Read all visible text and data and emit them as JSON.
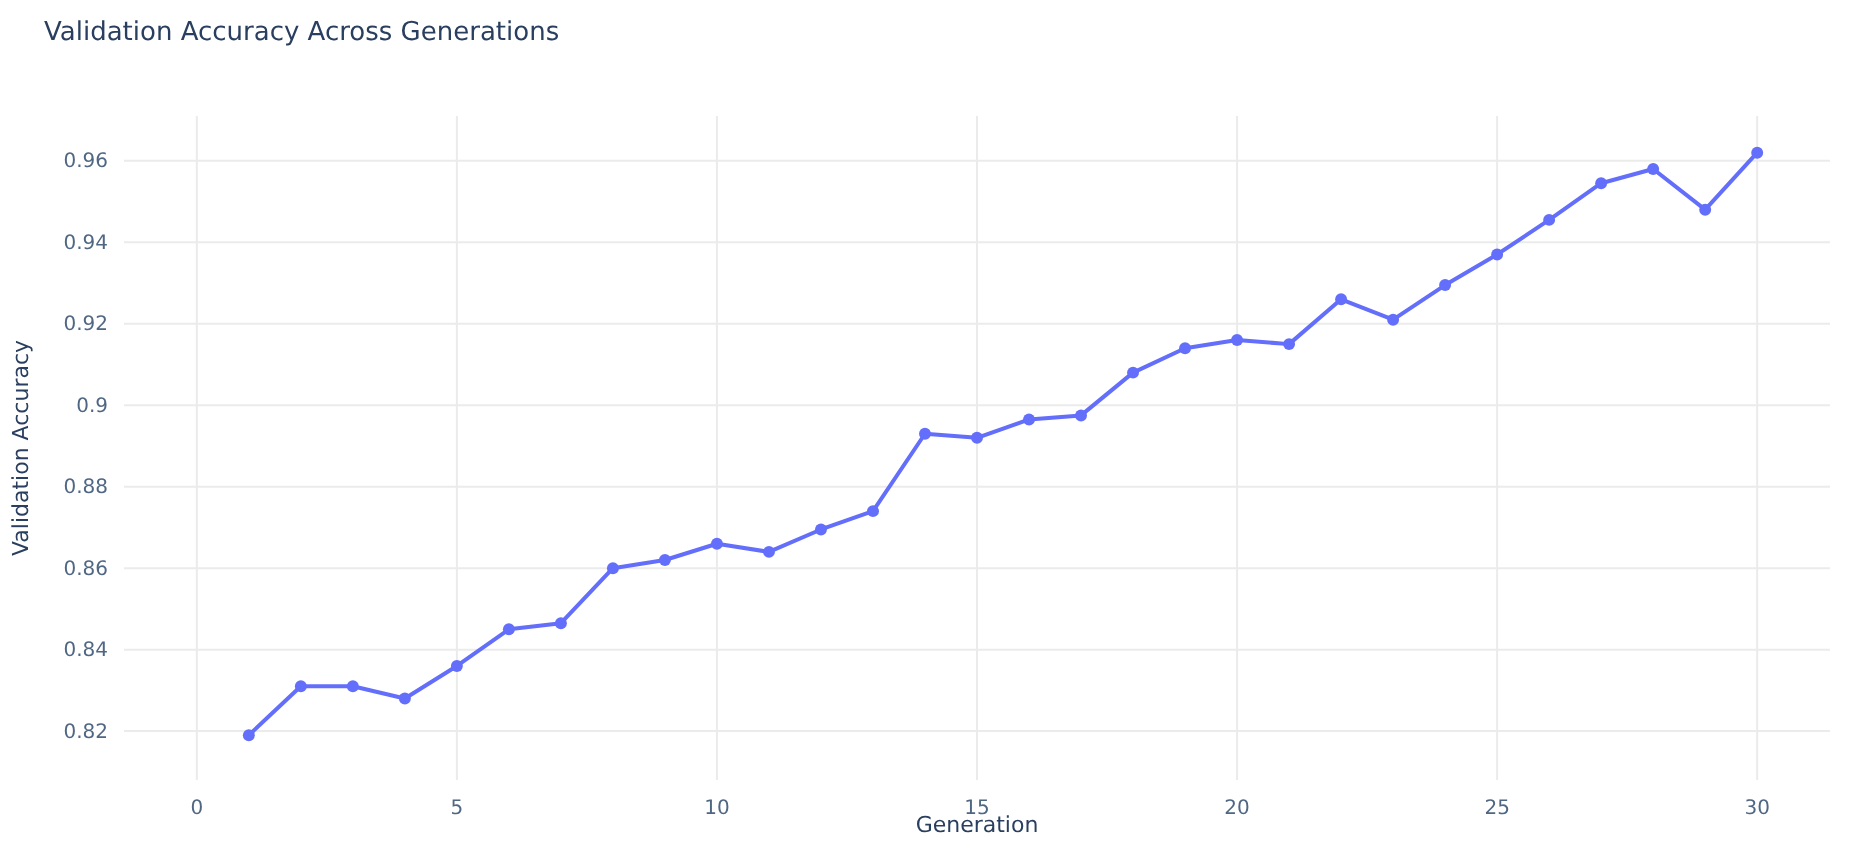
{
  "chart_data": {
    "type": "line",
    "title": "Validation Accuracy Across Generations",
    "xlabel": "Generation",
    "ylabel": "Validation Accuracy",
    "x": [
      1,
      2,
      3,
      4,
      5,
      6,
      7,
      8,
      9,
      10,
      11,
      12,
      13,
      14,
      15,
      16,
      17,
      18,
      19,
      20,
      21,
      22,
      23,
      24,
      25,
      26,
      27,
      28,
      29,
      30
    ],
    "series": [
      {
        "color": "#636efa",
        "values": [
          0.819,
          0.831,
          0.831,
          0.828,
          0.836,
          0.845,
          0.8465,
          0.86,
          0.862,
          0.866,
          0.864,
          0.8695,
          0.874,
          0.893,
          0.892,
          0.8965,
          0.8975,
          0.908,
          0.914,
          0.916,
          0.915,
          0.926,
          0.921,
          0.9295,
          0.937,
          0.9455,
          0.9545,
          0.958,
          0.948,
          0.962
        ]
      }
    ],
    "xlim": [
      -1.4,
      31.4
    ],
    "xticks": [
      0,
      5,
      10,
      15,
      20,
      25,
      30
    ],
    "ylim": [
      0.808,
      0.971
    ],
    "yticks": [
      0.82,
      0.84,
      0.86,
      0.88,
      {
        "value": 0.9,
        "label": "0.9"
      },
      0.92,
      0.94,
      0.96
    ],
    "grid": true,
    "marker": "circle",
    "line_style": "solid"
  }
}
